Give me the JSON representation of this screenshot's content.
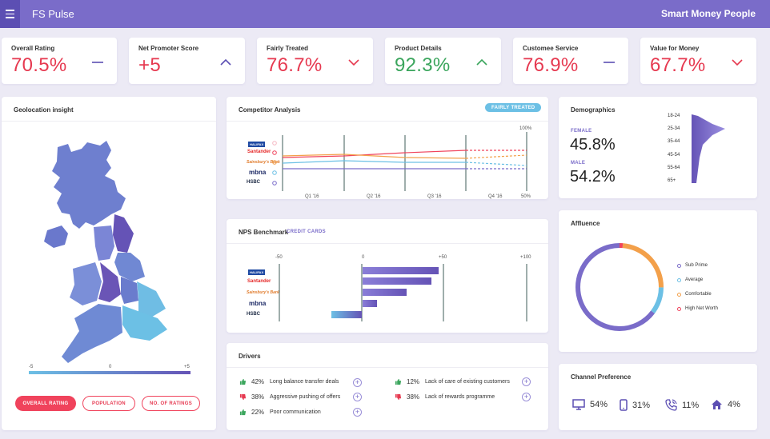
{
  "header": {
    "title": "FS Pulse",
    "brand": "Smart Money People"
  },
  "kpis": [
    {
      "label": "Overall Rating",
      "value": "70.5%",
      "trend": "flat",
      "tone": "red"
    },
    {
      "label": "Net Promoter Score",
      "value": "+5",
      "trend": "up",
      "tone": "red"
    },
    {
      "label": "Fairly Treated",
      "value": "76.7%",
      "trend": "down",
      "tone": "red"
    },
    {
      "label": "Product Details",
      "value": "92.3%",
      "trend": "up",
      "tone": "green"
    },
    {
      "label": "Customee Service",
      "value": "76.9%",
      "trend": "flat",
      "tone": "red"
    },
    {
      "label": "Value for Money",
      "value": "67.7%",
      "trend": "down",
      "tone": "red"
    }
  ],
  "colors": {
    "primary": "#7a6cc9",
    "red": "#e63950",
    "green": "#3aa55c",
    "light_blue": "#6cc0e5",
    "orange": "#f3a04a",
    "pink": "#f0435c"
  },
  "geo": {
    "title": "Geolocation insight",
    "scale": [
      "-5",
      "0",
      "+5"
    ],
    "buttons": [
      "OVERALL RATING",
      "POPULATION",
      "NO. OF RATINGS"
    ]
  },
  "competitor": {
    "title": "Competitor Analysis",
    "tag": "FAIRLY TREATED",
    "y_top": "100%",
    "y_bottom": "50%",
    "quarters": [
      "Q1 '16",
      "Q2 '16",
      "Q3 '16",
      "Q4 '16"
    ],
    "banks": [
      "HALIFAX",
      "Santander",
      "Sainsbury's Bank",
      "mbna",
      "HSBC"
    ]
  },
  "nps": {
    "title": "NPS Benchmark",
    "tag": "CREDIT CARDS",
    "axis": [
      "-50",
      "0",
      "+50",
      "+100"
    ],
    "banks": [
      "HALIFAX",
      "Santander",
      "Sainsbury's Bank",
      "mbna",
      "HSBC"
    ]
  },
  "drivers": {
    "title": "Drivers",
    "left": [
      {
        "pct": "42%",
        "text": "Long balance transfer deals",
        "dir": "up"
      },
      {
        "pct": "38%",
        "text": "Aggressive pushing of offers",
        "dir": "down"
      },
      {
        "pct": "22%",
        "text": "Poor communication",
        "dir": "up"
      }
    ],
    "right": [
      {
        "pct": "12%",
        "text": "Lack of care of existing customers",
        "dir": "up"
      },
      {
        "pct": "38%",
        "text": "Lack of rewards programme",
        "dir": "down"
      }
    ]
  },
  "demographics": {
    "title": "Demographics",
    "female_label": "FEMALE",
    "female_value": "45.8%",
    "male_label": "MALE",
    "male_value": "54.2%",
    "ages": [
      "18-24",
      "25-34",
      "35-44",
      "45-54",
      "55-64",
      "65+"
    ]
  },
  "affluence": {
    "title": "Affluence",
    "legend": [
      {
        "label": "Sub Prime",
        "color": "#7a6cc9"
      },
      {
        "label": "Average",
        "color": "#6cc0e5"
      },
      {
        "label": "Comfortable",
        "color": "#f3a04a"
      },
      {
        "label": "High Net Worth",
        "color": "#f0435c"
      }
    ]
  },
  "channel": {
    "title": "Channel Preference",
    "items": [
      {
        "icon": "desktop-icon",
        "value": "54%"
      },
      {
        "icon": "mobile-icon",
        "value": "31%"
      },
      {
        "icon": "phone-icon",
        "value": "11%"
      },
      {
        "icon": "home-icon",
        "value": "4%"
      }
    ]
  }
}
